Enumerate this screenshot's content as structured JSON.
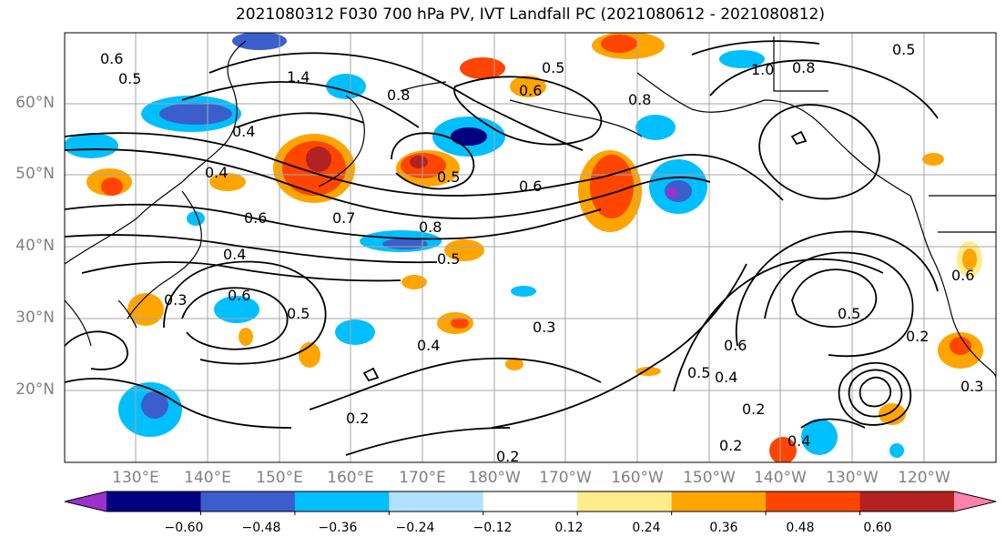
{
  "title": "2021080312 F030 700 hPa PV, IVT Landfall PC (2021080612 - 2021080812)",
  "map": {
    "lat_labels": [
      "60°N",
      "50°N",
      "40°N",
      "30°N",
      "20°N"
    ],
    "lon_labels": [
      "130°E",
      "140°E",
      "150°E",
      "160°E",
      "170°E",
      "180°W",
      "170°W",
      "160°W",
      "150°W",
      "140°W",
      "130°W",
      "120°W"
    ],
    "contour_labels": [
      "0.6",
      "0.5",
      "1.4",
      "0.8",
      "0.5",
      "1.0",
      "0.8",
      "0.5",
      "0.5",
      "0.4",
      "0.6",
      "0.4",
      "0.8",
      "0.6",
      "0.6",
      "0.7",
      "0.8",
      "0.4",
      "0.5",
      "0.6",
      "0.5",
      "0.3",
      "0.3",
      "0.4",
      "0.2",
      "0.5",
      "0.6",
      "0.4",
      "0.2",
      "0.5",
      "0.6",
      "0.3",
      "0.2",
      "0.2",
      "0.2",
      "0.4"
    ]
  },
  "colorbar": {
    "colors": [
      "#9932cc",
      "#000080",
      "#3a5fcd",
      "#00bfff",
      "#b0e2ff",
      "#ffffff",
      "#ffec8b",
      "#ffa500",
      "#ff4500",
      "#b22222",
      "#ff82ab"
    ],
    "ticks": [
      "−0.60",
      "−0.48",
      "−0.36",
      "−0.24",
      "−0.12",
      "0.12",
      "0.24",
      "0.36",
      "0.48",
      "0.60"
    ]
  }
}
